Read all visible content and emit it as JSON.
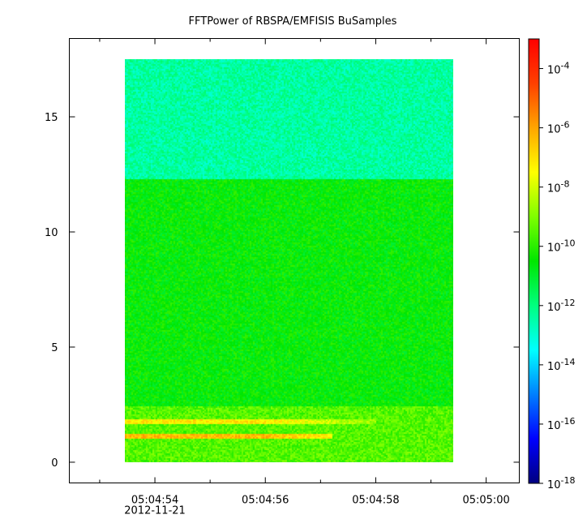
{
  "chart_data": {
    "type": "heatmap",
    "title": "FFTPower of RBSPA/EMFISIS  BuSamples",
    "xlabel": "",
    "ylabel": "",
    "x_axis": {
      "ticks": [
        {
          "value": 0,
          "label": "05:04:54",
          "sublabel": "2012-11-21"
        },
        {
          "value": 2,
          "label": "05:04:56",
          "sublabel": ""
        },
        {
          "value": 4,
          "label": "05:04:58",
          "sublabel": ""
        },
        {
          "value": 6,
          "label": "05:05:00",
          "sublabel": ""
        }
      ],
      "minor_ticks": [
        -1,
        1,
        3,
        5
      ],
      "range_seconds_from_05_04_54": [
        -1.55,
        6.6
      ],
      "data_range_seconds_from_05_04_54": [
        -0.55,
        5.4
      ]
    },
    "y_axis": {
      "ticks": [
        0,
        5,
        10,
        15
      ],
      "range": [
        -0.9,
        18.4
      ],
      "data_range": [
        0.0,
        17.5
      ]
    },
    "colorbar": {
      "scale": "log",
      "range": [
        1e-18,
        0.001
      ],
      "tick_labels": [
        {
          "exp": -4,
          "base": "10",
          "sup": "-4"
        },
        {
          "exp": -6,
          "base": "10",
          "sup": "-6"
        },
        {
          "exp": -8,
          "base": "10",
          "sup": "-8"
        },
        {
          "exp": -10,
          "base": "10",
          "sup": "-10"
        },
        {
          "exp": -12,
          "base": "10",
          "sup": "-12"
        },
        {
          "exp": -14,
          "base": "10",
          "sup": "-14"
        },
        {
          "exp": -16,
          "base": "10",
          "sup": "-16"
        },
        {
          "exp": -18,
          "base": "10",
          "sup": "-18"
        }
      ],
      "colors": [
        "#00007f",
        "#0000ff",
        "#007fff",
        "#00ffff",
        "#00ff7f",
        "#00e600",
        "#7fff00",
        "#ffff00",
        "#ffa500",
        "#ff4000",
        "#ff0000"
      ]
    },
    "bands": [
      {
        "y_range": [
          12.3,
          17.5
        ],
        "log10_power": -12.4,
        "description": "upper band (cyan-green)"
      },
      {
        "y_range": [
          2.4,
          12.3
        ],
        "log10_power": -10.5,
        "description": "middle band (green)"
      },
      {
        "y_range": [
          0.0,
          2.4
        ],
        "log10_power": -9.5,
        "description": "low band (yellow-green)"
      },
      {
        "y_range": [
          1.65,
          1.85
        ],
        "log10_power": -7.2,
        "description": "emission line ~1.75, fading by 05:04:58",
        "x_end": 4.0
      },
      {
        "y_range": [
          1.0,
          1.25
        ],
        "log10_power": -6.4,
        "description": "strong emission line ~1.1, fading after 05:04:56",
        "x_end": 3.2
      },
      {
        "y_range": [
          0.0,
          0.1
        ],
        "log10_power": -7.8,
        "description": "bottom edge yellow"
      }
    ],
    "grid": false,
    "legend": "none"
  }
}
